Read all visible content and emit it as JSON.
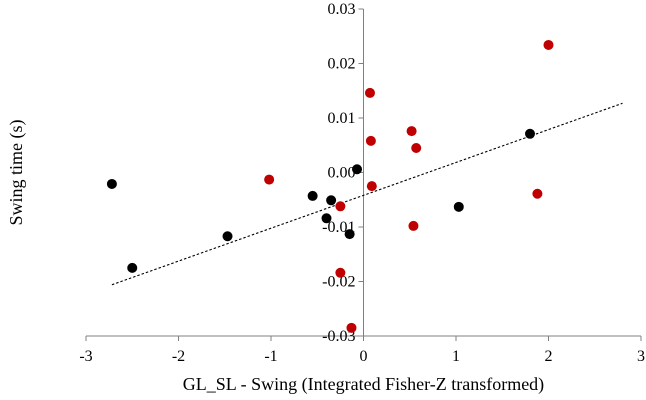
{
  "chart_data": {
    "type": "scatter",
    "title": "",
    "xlabel": "GL_SL - Swing (Integrated Fisher-Z transformed)",
    "ylabel": "Swing time (s)",
    "xlim": [
      -3,
      3
    ],
    "ylim": [
      -0.03,
      0.03
    ],
    "x_ticks": [
      -3,
      -2,
      -1,
      0,
      1,
      2,
      3
    ],
    "x_tick_labels": [
      "-3",
      "-2",
      "-1",
      "0",
      "1",
      "2",
      "3"
    ],
    "y_ticks": [
      0.03,
      0.02,
      0.01,
      0.0,
      -0.01,
      -0.02,
      -0.03
    ],
    "y_tick_labels": [
      "0.03",
      "0.02",
      "0.01",
      "0.00",
      "-0.01",
      "-0.02",
      "-0.03"
    ],
    "grid": false,
    "legend": "none",
    "series": [
      {
        "color": "#000000",
        "x": [
          -2.72,
          -2.5,
          -1.47,
          -0.55,
          -0.35,
          -0.4,
          -0.15,
          -0.07,
          1.03,
          1.8
        ],
        "y": [
          -0.0021,
          -0.0175,
          -0.0117,
          -0.0043,
          -0.0051,
          -0.0084,
          -0.0113,
          0.0006,
          -0.0063,
          0.0071
        ]
      },
      {
        "color": "#c00000",
        "x": [
          -1.02,
          -0.25,
          -0.25,
          -0.13,
          0.07,
          0.08,
          0.09,
          0.52,
          0.57,
          0.54,
          1.88,
          2.0
        ],
        "y": [
          -0.0013,
          -0.0062,
          -0.0184,
          -0.0285,
          0.0146,
          0.0058,
          -0.0025,
          0.0076,
          0.0045,
          -0.0098,
          -0.0039,
          0.0234
        ]
      }
    ],
    "trendline": {
      "style": "dotted",
      "color": "#000000",
      "x": [
        -2.72,
        2.8
      ],
      "y": [
        -0.0206,
        0.0127
      ]
    }
  }
}
